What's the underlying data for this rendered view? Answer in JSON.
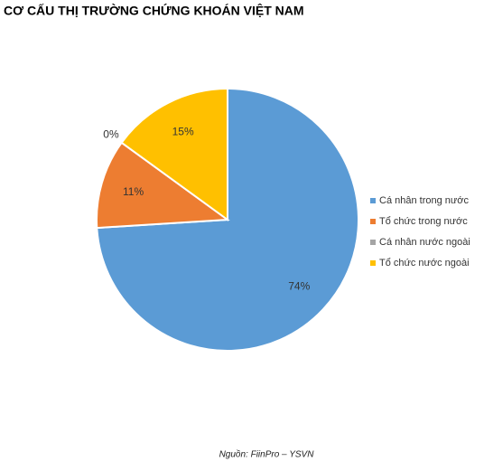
{
  "chart_data": {
    "type": "pie",
    "title": "CƠ CẤU THỊ TRƯỜNG CHỨNG KHOÁN VIỆT NAM",
    "categories": [
      "Cá nhân trong nước",
      "Tổ chức trong nước",
      "Cá nhân nước ngoài",
      "Tổ chức nước ngoài"
    ],
    "values": [
      74,
      11,
      0,
      15
    ],
    "value_labels": [
      "74%",
      "11%",
      "0%",
      "15%"
    ],
    "colors": [
      "#5b9bd5",
      "#ed7d31",
      "#a5a5a5",
      "#ffc000"
    ],
    "legend": "right",
    "source": "Nguồn: FiinPro – YSVN"
  }
}
